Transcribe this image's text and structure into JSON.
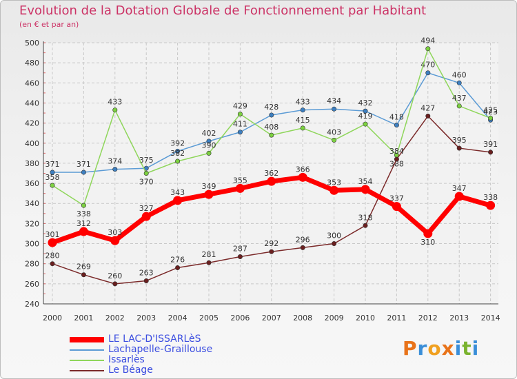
{
  "header": {
    "title": "Evolution de la Dotation Globale de Fonctionnement par Habitant",
    "subtitle": "(en € et par an)"
  },
  "logo": {
    "letters": [
      "P",
      "r",
      "o",
      "x",
      "i",
      "t",
      "i"
    ],
    "colors": [
      "#e8731a",
      "#3a8ed8",
      "#f0a020",
      "#e8731a",
      "#3a8ed8",
      "#7ab32e",
      "#3a8ed8"
    ]
  },
  "chart_data": {
    "type": "line",
    "title": "Evolution de la Dotation Globale de Fonctionnement par Habitant",
    "subtitle": "(en € et par an)",
    "x": [
      "2000",
      "2001",
      "2002",
      "2003",
      "2004",
      "2005",
      "2006",
      "2007",
      "2008",
      "2009",
      "2010",
      "2011",
      "2012",
      "2013",
      "2014"
    ],
    "ylim": [
      240,
      500
    ],
    "yticks": [
      240,
      260,
      280,
      300,
      320,
      340,
      360,
      380,
      400,
      420,
      440,
      460,
      480,
      500
    ],
    "grid": true,
    "legend_position": "bottom-left",
    "series": [
      {
        "name": "Lachapelle-Graillouse",
        "color": "#5b9bd5",
        "marker": "#3d7fc0",
        "labels_below": [],
        "values": [
          371,
          371,
          374,
          375,
          392,
          402,
          411,
          428,
          433,
          434,
          432,
          418,
          470,
          460,
          423
        ]
      },
      {
        "name": "Issarlès",
        "color": "#8fd65b",
        "marker": "#7cd140",
        "labels_below": [
          1,
          3,
          11
        ],
        "values": [
          358,
          338,
          433,
          370,
          382,
          390,
          429,
          408,
          415,
          403,
          419,
          388,
          494,
          437,
          425
        ]
      },
      {
        "name": "Le Béage",
        "color": "#7b2a2a",
        "marker": "#6a1f1f",
        "labels_below": [],
        "values": [
          280,
          269,
          260,
          263,
          276,
          281,
          287,
          292,
          296,
          300,
          318,
          384,
          427,
          395,
          391
        ]
      },
      {
        "name": "LE LAC-D'ISSARLèS",
        "color": "#ff0000",
        "marker": "#ff0000",
        "labels_below": [
          12
        ],
        "values": [
          301,
          312,
          303,
          327,
          343,
          349,
          355,
          362,
          366,
          353,
          354,
          337,
          310,
          347,
          338
        ]
      }
    ]
  },
  "legend": {
    "items": [
      {
        "label": "LE LAC-D'ISSARLèS",
        "color": "#ff0000",
        "thick": true
      },
      {
        "label": "Lachapelle-Graillouse",
        "color": "#5b9bd5",
        "thick": false
      },
      {
        "label": "Issarlès",
        "color": "#8fd65b",
        "thick": false
      },
      {
        "label": "Le Béage",
        "color": "#7b2a2a",
        "thick": false
      }
    ]
  }
}
